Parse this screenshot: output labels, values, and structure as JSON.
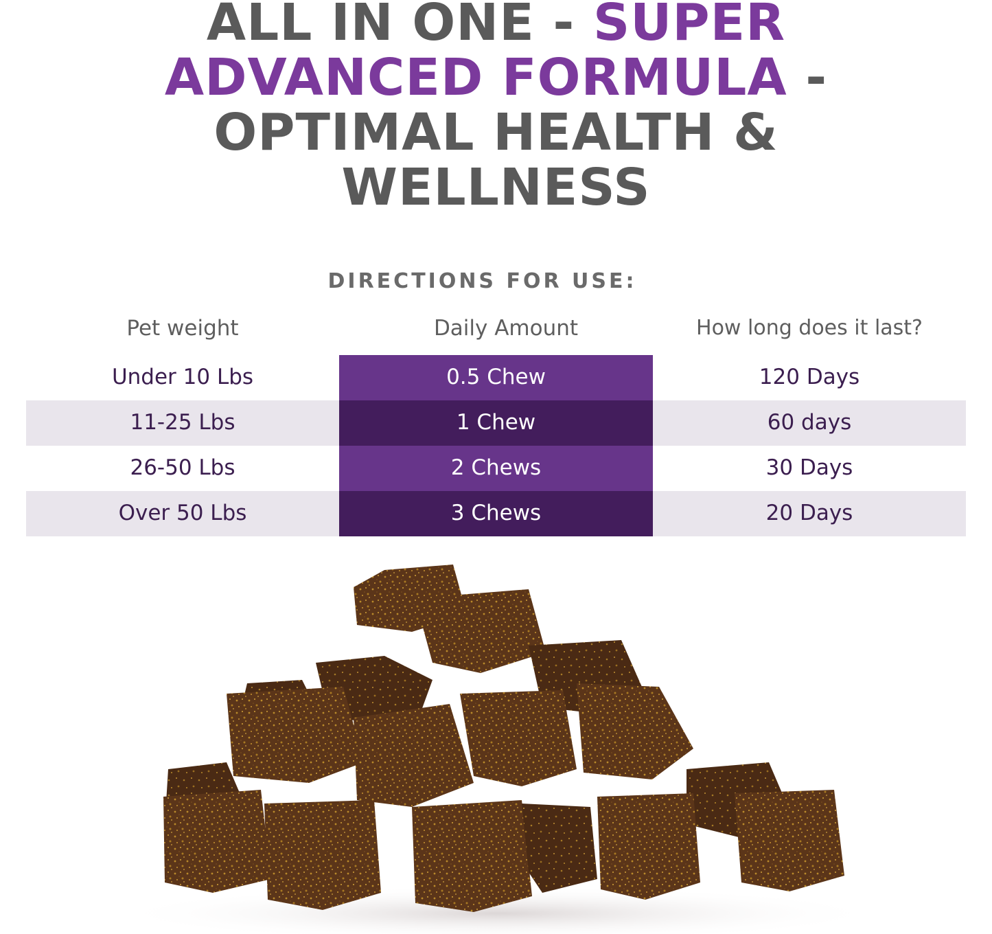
{
  "headline": {
    "line1_grey": "ALL IN ONE  - ",
    "line1_purple": "SUPER",
    "line2_purple": "ADVANCED FORMULA",
    "line2_grey": " -",
    "line3": "OPTIMAL HEALTH &",
    "line4": "WELLNESS"
  },
  "directions": {
    "title": "DIRECTIONS FOR USE:",
    "headers": [
      "Pet weight",
      "Daily Amount",
      "How long does it last?"
    ],
    "rows": [
      [
        "Under 10 Lbs",
        "0.5 Chew",
        "120 Days"
      ],
      [
        "11-25 Lbs",
        "1 Chew",
        "60 days"
      ],
      [
        "26-50 Lbs",
        "2 Chews",
        "30 Days"
      ],
      [
        "Over 50 Lbs",
        "3 Chews",
        "20 Days"
      ]
    ]
  },
  "colors": {
    "purple_accent": "#7b3a9c",
    "grey_text": "#5a5a5a",
    "purple_light_cell": "#67358a",
    "purple_dark_cell": "#431d5c",
    "row_shade": "#e9e5ec",
    "chew_brown": "#5a3418",
    "chew_speckle": "#c89a2e"
  },
  "image": {
    "icon": "soft-chews-pile"
  }
}
